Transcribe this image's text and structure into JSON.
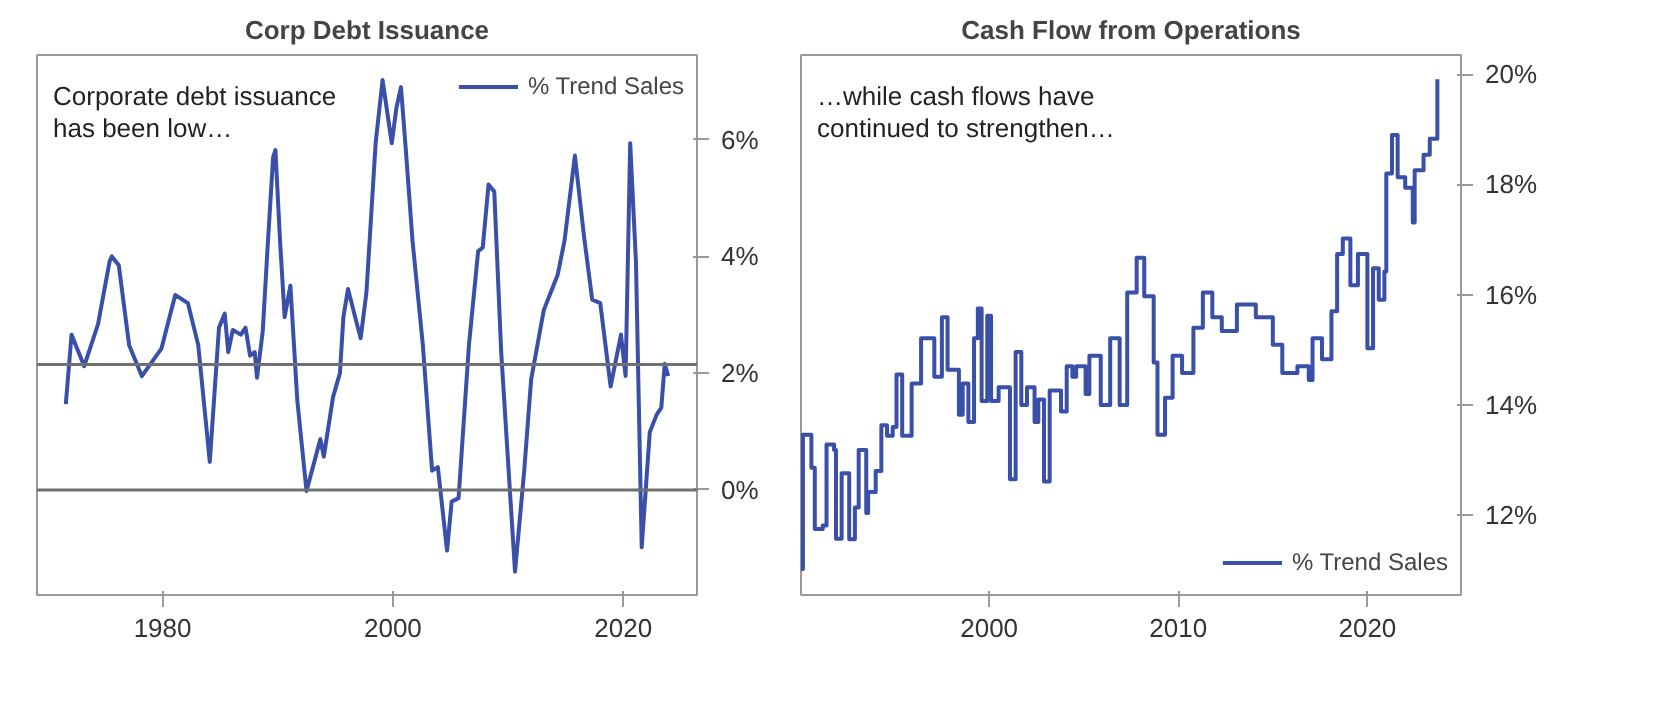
{
  "chart_data": [
    {
      "type": "line",
      "title": "Corp Debt Issuance",
      "annotations": [
        "Corporate debt issuance has been low…"
      ],
      "legend": "top right",
      "grid": false,
      "xlim": [
        1969.1,
        2026.4
      ],
      "ylim": [
        -1.8,
        7.45
      ],
      "xticks": [
        1980,
        2000,
        2020
      ],
      "yticks": [
        {
          "value": 0,
          "label": "0%"
        },
        {
          "value": 2,
          "label": "2%"
        },
        {
          "value": 4,
          "label": "4%"
        },
        {
          "value": 6,
          "label": "6%"
        }
      ],
      "ref_lines": [
        {
          "axis": "y",
          "value": 0,
          "color": "#707070"
        },
        {
          "axis": "y",
          "value": 2.15,
          "color": "#707070"
        }
      ],
      "series": [
        {
          "name": "% Trend Sales",
          "color": "#3a4fa8",
          "x": [
            1971.6,
            1972.1,
            1973.2,
            1974.4,
            1975.4,
            1975.6,
            1976.2,
            1977.1,
            1978.2,
            1979.9,
            1981.1,
            1982.2,
            1983.1,
            1984.1,
            1984.9,
            1985.4,
            1985.7,
            1986.1,
            1986.8,
            1987.2,
            1987.6,
            1988.0,
            1988.2,
            1988.7,
            1989.1,
            1989.6,
            1989.8,
            1990.2,
            1990.6,
            1991.1,
            1991.7,
            1992.5,
            1993.7,
            1994.0,
            1994.8,
            1995.4,
            1995.7,
            1996.1,
            1996.8,
            1997.2,
            1997.7,
            1998.5,
            1999.1,
            1999.9,
            2000.3,
            2000.7,
            2001.1,
            2001.7,
            2002.6,
            2003.4,
            2003.9,
            2004.7,
            2005.1,
            2005.7,
            2006.6,
            2007.4,
            2007.8,
            2008.3,
            2008.8,
            2009.4,
            2010.6,
            2011.4,
            2012.0,
            2012.6,
            2013.1,
            2013.7,
            2014.3,
            2014.9,
            2015.8,
            2016.6,
            2017.3,
            2018.0,
            2018.9,
            2019.8,
            2020.2,
            2020.6,
            2021.1,
            2021.6,
            2022.3,
            2022.9,
            2023.3,
            2023.6,
            2023.9
          ],
          "values": [
            1.47,
            2.66,
            2.12,
            2.84,
            3.91,
            4.0,
            3.85,
            2.48,
            1.95,
            2.42,
            3.34,
            3.2,
            2.48,
            0.48,
            2.78,
            3.02,
            2.36,
            2.74,
            2.66,
            2.78,
            2.3,
            2.36,
            1.92,
            2.72,
            4.09,
            5.7,
            5.82,
            4.27,
            2.96,
            3.5,
            1.53,
            -0.02,
            0.87,
            0.57,
            1.59,
            2.0,
            2.96,
            3.44,
            2.9,
            2.6,
            3.38,
            5.94,
            7.02,
            5.94,
            6.54,
            6.9,
            5.88,
            4.27,
            2.48,
            0.33,
            0.39,
            -1.04,
            -0.2,
            -0.14,
            2.48,
            4.09,
            4.15,
            5.23,
            5.11,
            2.36,
            -1.4,
            0.33,
            1.89,
            2.54,
            3.08,
            3.38,
            3.68,
            4.27,
            5.73,
            4.33,
            3.26,
            3.2,
            1.77,
            2.66,
            1.95,
            5.94,
            3.91,
            -0.98,
            0.99,
            1.29,
            1.41,
            2.16,
            1.95
          ]
        }
      ]
    },
    {
      "type": "step",
      "title": "Cash Flow from Operations",
      "annotations": [
        "…while cash flows have continued to strengthen…"
      ],
      "legend": "bottom right",
      "grid": false,
      "xlim": [
        1990.05,
        2024.95
      ],
      "ylim": [
        10.55,
        20.35
      ],
      "xticks": [
        2000,
        2010,
        2020
      ],
      "yticks": [
        {
          "value": 12,
          "label": "12%"
        },
        {
          "value": 14,
          "label": "14%"
        },
        {
          "value": 16,
          "label": "16%"
        },
        {
          "value": 18,
          "label": "18%"
        },
        {
          "value": 20,
          "label": "20%"
        }
      ],
      "series": [
        {
          "name": "% Trend Sales",
          "color": "#3a4fa8",
          "x": [
            1990.05,
            1990.15,
            1990.58,
            1990.6,
            1990.78,
            1991.2,
            1991.4,
            1991.8,
            1991.9,
            1992.2,
            1992.6,
            1992.9,
            1993.1,
            1993.5,
            1993.6,
            1994.0,
            1994.3,
            1994.6,
            1994.9,
            1995.1,
            1995.4,
            1995.9,
            1996.4,
            1997.1,
            1997.5,
            1997.8,
            1998.4,
            1998.6,
            1998.9,
            1999.2,
            1999.4,
            1999.6,
            1999.9,
            2000.1,
            2000.5,
            2001.1,
            2001.4,
            2001.7,
            2002.0,
            2002.4,
            2002.6,
            2002.9,
            2003.2,
            2003.8,
            2004.1,
            2004.4,
            2004.6,
            2005.1,
            2005.3,
            2005.9,
            2006.4,
            2006.9,
            2007.3,
            2007.8,
            2008.2,
            2008.7,
            2008.9,
            2009.3,
            2009.7,
            2010.2,
            2010.8,
            2011.3,
            2011.8,
            2012.3,
            2013.1,
            2014.1,
            2015.0,
            2015.5,
            2016.3,
            2016.9,
            2017.1,
            2017.6,
            2018.1,
            2018.4,
            2018.7,
            2019.1,
            2019.5,
            2020.0,
            2020.3,
            2020.6,
            2020.9,
            2021.0,
            2021.3,
            2021.6,
            2022.0,
            2022.4,
            2022.5,
            2022.97,
            2023.3,
            2023.7
          ],
          "values": [
            11.02,
            13.46,
            13.46,
            12.86,
            11.75,
            11.81,
            13.28,
            13.18,
            11.57,
            12.76,
            11.56,
            12.14,
            13.18,
            12.04,
            12.42,
            12.8,
            13.63,
            13.44,
            13.6,
            14.55,
            13.44,
            14.39,
            15.21,
            14.51,
            15.59,
            14.64,
            13.82,
            14.39,
            13.69,
            15.21,
            15.75,
            14.07,
            15.62,
            14.07,
            14.32,
            12.65,
            14.96,
            14.0,
            14.32,
            13.69,
            14.1,
            12.61,
            14.26,
            13.88,
            14.7,
            14.51,
            14.7,
            14.2,
            14.89,
            14.0,
            15.21,
            14.0,
            16.04,
            16.67,
            15.97,
            14.77,
            13.46,
            14.13,
            14.89,
            14.58,
            15.4,
            16.04,
            15.59,
            15.34,
            15.82,
            15.59,
            15.09,
            14.58,
            14.7,
            14.45,
            15.21,
            14.83,
            15.7,
            16.74,
            17.02,
            16.17,
            16.74,
            15.03,
            16.48,
            15.91,
            16.42,
            18.2,
            18.9,
            18.13,
            17.94,
            17.31,
            18.26,
            18.54,
            18.83,
            19.91
          ]
        }
      ]
    }
  ]
}
